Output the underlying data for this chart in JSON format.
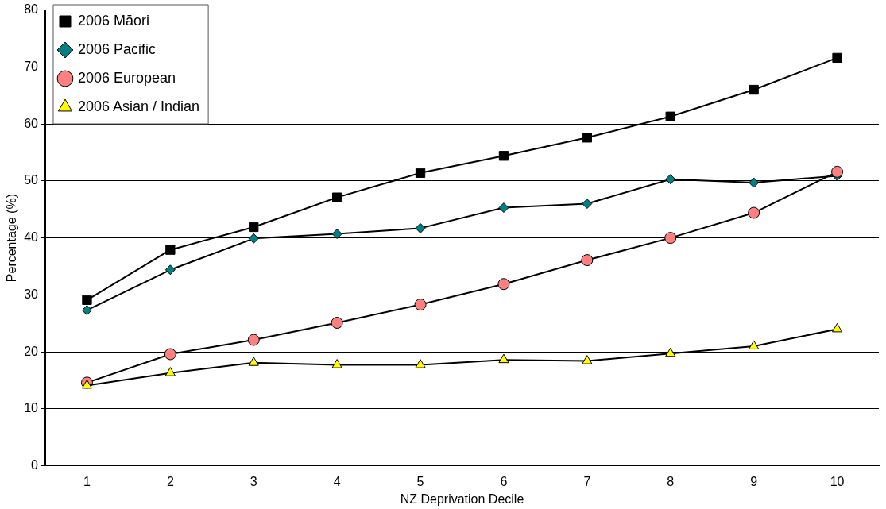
{
  "chart_data": {
    "type": "line",
    "xlabel": "NZ Deprivation Decile",
    "ylabel": "Percentage (%)",
    "categories": [
      "1",
      "2",
      "3",
      "4",
      "5",
      "6",
      "7",
      "8",
      "9",
      "10"
    ],
    "series": [
      {
        "name": "2006 Māori",
        "color": "#000000",
        "marker": "square",
        "values": [
          29.1,
          37.9,
          41.9,
          47.1,
          51.4,
          54.4,
          57.6,
          61.3,
          66,
          71.6
        ]
      },
      {
        "name": "2006 Pacific",
        "color": "#008080",
        "marker": "diamond",
        "values": [
          27.3,
          34.4,
          39.9,
          40.7,
          41.7,
          45.3,
          46,
          50.3,
          49.7,
          50.9
        ]
      },
      {
        "name": "2006 European",
        "color": "#ff8080",
        "marker": "circle",
        "values": [
          14.6,
          19.6,
          22.1,
          25.1,
          28.3,
          31.9,
          36.1,
          40,
          44.4,
          51.6
        ]
      },
      {
        "name": "2006 Asian / Indian",
        "color": "#ffff00",
        "marker": "triangle",
        "values": [
          14.1,
          16.3,
          18.1,
          17.7,
          17.7,
          18.6,
          18.4,
          19.7,
          21,
          24
        ]
      }
    ],
    "ylim": [
      0,
      80
    ],
    "yticks": [
      0,
      10,
      20,
      30,
      40,
      50,
      60,
      70,
      80
    ],
    "grid": "y",
    "legend": "top left",
    "line_style": "solid"
  }
}
